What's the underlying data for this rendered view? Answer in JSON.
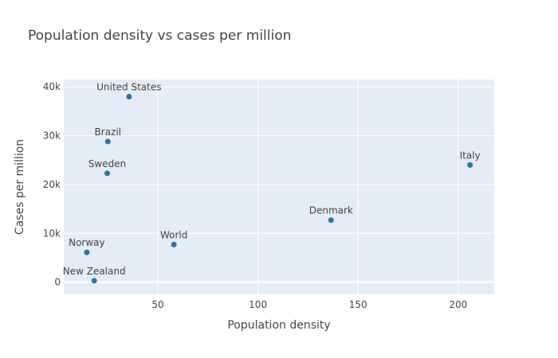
{
  "chart_data": {
    "type": "scatter",
    "title": "Population density vs cases per million",
    "xlabel": "Population density",
    "ylabel": "Cases per million",
    "xlim": [
      3,
      218
    ],
    "ylim": [
      -2500,
      41500
    ],
    "x_ticks": [
      50,
      100,
      150,
      200
    ],
    "x_tick_labels": [
      "50",
      "100",
      "150",
      "200"
    ],
    "y_ticks": [
      0,
      10000,
      20000,
      30000,
      40000
    ],
    "y_tick_labels": [
      "0",
      "10k",
      "20k",
      "30k",
      "40k"
    ],
    "grid": true,
    "marker_color": "#1f77b4",
    "plot_background": "#e5ecf6",
    "points": [
      {
        "label": "United States",
        "x": 35.6,
        "y": 38000
      },
      {
        "label": "Brazil",
        "x": 25.0,
        "y": 28800
      },
      {
        "label": "Sweden",
        "x": 24.7,
        "y": 22300
      },
      {
        "label": "Italy",
        "x": 205.9,
        "y": 24000
      },
      {
        "label": "Denmark",
        "x": 136.5,
        "y": 12700
      },
      {
        "label": "World",
        "x": 58.0,
        "y": 7700
      },
      {
        "label": "Norway",
        "x": 14.5,
        "y": 6100
      },
      {
        "label": "New Zealand",
        "x": 18.2,
        "y": 300
      }
    ]
  }
}
